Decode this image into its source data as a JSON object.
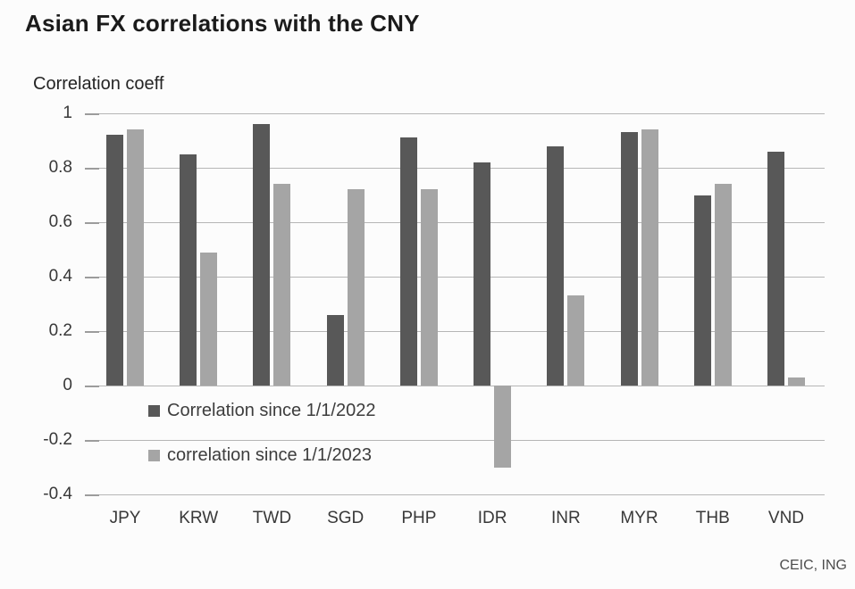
{
  "chart_data": {
    "type": "bar",
    "title": "Asian FX correlations with the CNY",
    "ylabel": "Correlation coeff",
    "source": "CEIC, ING",
    "categories": [
      "JPY",
      "KRW",
      "TWD",
      "SGD",
      "PHP",
      "IDR",
      "INR",
      "MYR",
      "THB",
      "VND"
    ],
    "series": [
      {
        "name": "Correlation since 1/1/2022",
        "color": "#585858",
        "values": [
          0.92,
          0.85,
          0.96,
          0.26,
          0.91,
          0.82,
          0.88,
          0.93,
          0.7,
          0.86
        ]
      },
      {
        "name": "correlation since 1/1/2023",
        "color": "#a5a5a5",
        "values": [
          0.94,
          0.49,
          0.74,
          0.72,
          0.72,
          -0.3,
          0.33,
          0.94,
          0.74,
          0.03
        ]
      }
    ],
    "ylim": [
      -0.4,
      1.0
    ],
    "yticks": [
      1,
      0.8,
      0.6,
      0.4,
      0.2,
      0,
      -0.2,
      -0.4
    ],
    "ytick_labels": [
      "1",
      "0.8",
      "0.6",
      "0.4",
      "0.2",
      "0",
      "-0.2",
      "-0.4"
    ],
    "grid": true,
    "legend_position": "inside-bottom-left"
  }
}
